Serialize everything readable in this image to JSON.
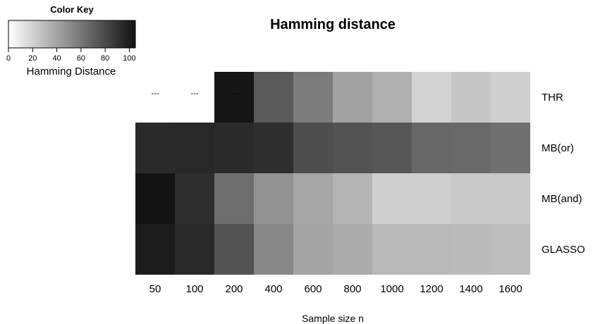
{
  "chart_data": {
    "type": "heatmap",
    "title": "Hamming distance",
    "xlabel": "Sample size n",
    "ylabel": "",
    "x": [
      "50",
      "100",
      "200",
      "400",
      "600",
      "800",
      "1000",
      "1200",
      "1400",
      "1600"
    ],
    "rows": [
      "THR",
      "MB(or)",
      "MB(and)",
      "GLASSO"
    ],
    "values": [
      [
        null,
        null,
        103,
        73,
        58,
        41,
        35,
        20,
        25,
        21
      ],
      [
        94,
        95,
        94,
        92,
        78,
        76,
        74,
        67,
        66,
        63
      ],
      [
        104,
        92,
        64,
        48,
        39,
        33,
        21,
        21,
        24,
        24
      ],
      [
        100,
        95,
        76,
        53,
        40,
        37,
        31,
        31,
        30,
        29
      ]
    ],
    "missing_label": "---",
    "color_key": {
      "title": "Color Key",
      "label": "Hamming Distance",
      "ticks": [
        0,
        20,
        40,
        60,
        80,
        100
      ],
      "range": [
        0,
        105
      ],
      "low_color": "#ffffff",
      "high_color": "#111111"
    }
  }
}
